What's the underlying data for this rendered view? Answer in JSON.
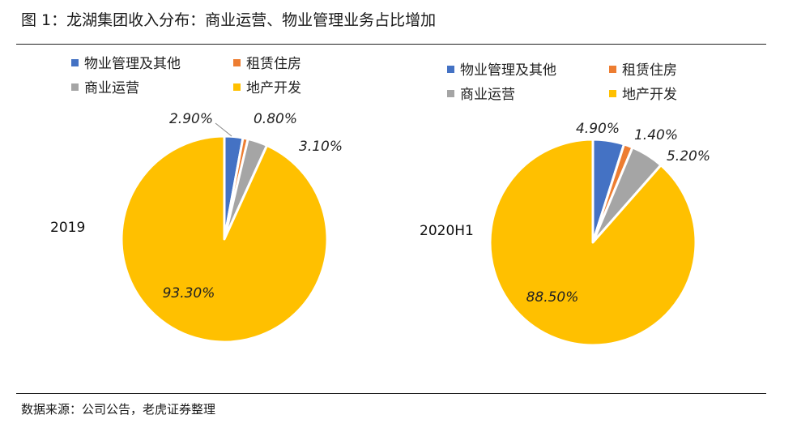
{
  "figure": {
    "title": "图 1：龙湖集团收入分布：商业运营、物业管理业务占比增加",
    "source": "数据来源：公司公告，老虎证券整理"
  },
  "chart_data": [
    {
      "type": "pie",
      "label": "2019",
      "legend": [
        "物业管理及其他",
        "租赁住房",
        "商业运营",
        "地产开发"
      ],
      "slices": [
        {
          "name": "物业管理及其他",
          "value": 2.9,
          "label": "2.90%",
          "color": "#4472C4"
        },
        {
          "name": "租赁住房",
          "value": 0.8,
          "label": "0.80%",
          "color": "#ED7D31"
        },
        {
          "name": "商业运营",
          "value": 3.1,
          "label": "3.10%",
          "color": "#A5A5A5"
        },
        {
          "name": "地产开发",
          "value": 93.3,
          "label": "93.30%",
          "color": "#FFC000"
        }
      ],
      "legend_placement": "top"
    },
    {
      "type": "pie",
      "label": "2020H1",
      "legend": [
        "物业管理及其他",
        "租赁住房",
        "商业运营",
        "地产开发"
      ],
      "slices": [
        {
          "name": "物业管理及其他",
          "value": 4.9,
          "label": "4.90%",
          "color": "#4472C4"
        },
        {
          "name": "租赁住房",
          "value": 1.4,
          "label": "1.40%",
          "color": "#ED7D31"
        },
        {
          "name": "商业运营",
          "value": 5.2,
          "label": "5.20%",
          "color": "#A5A5A5"
        },
        {
          "name": "地产开发",
          "value": 88.5,
          "label": "88.50%",
          "color": "#FFC000"
        }
      ],
      "legend_placement": "top"
    }
  ]
}
